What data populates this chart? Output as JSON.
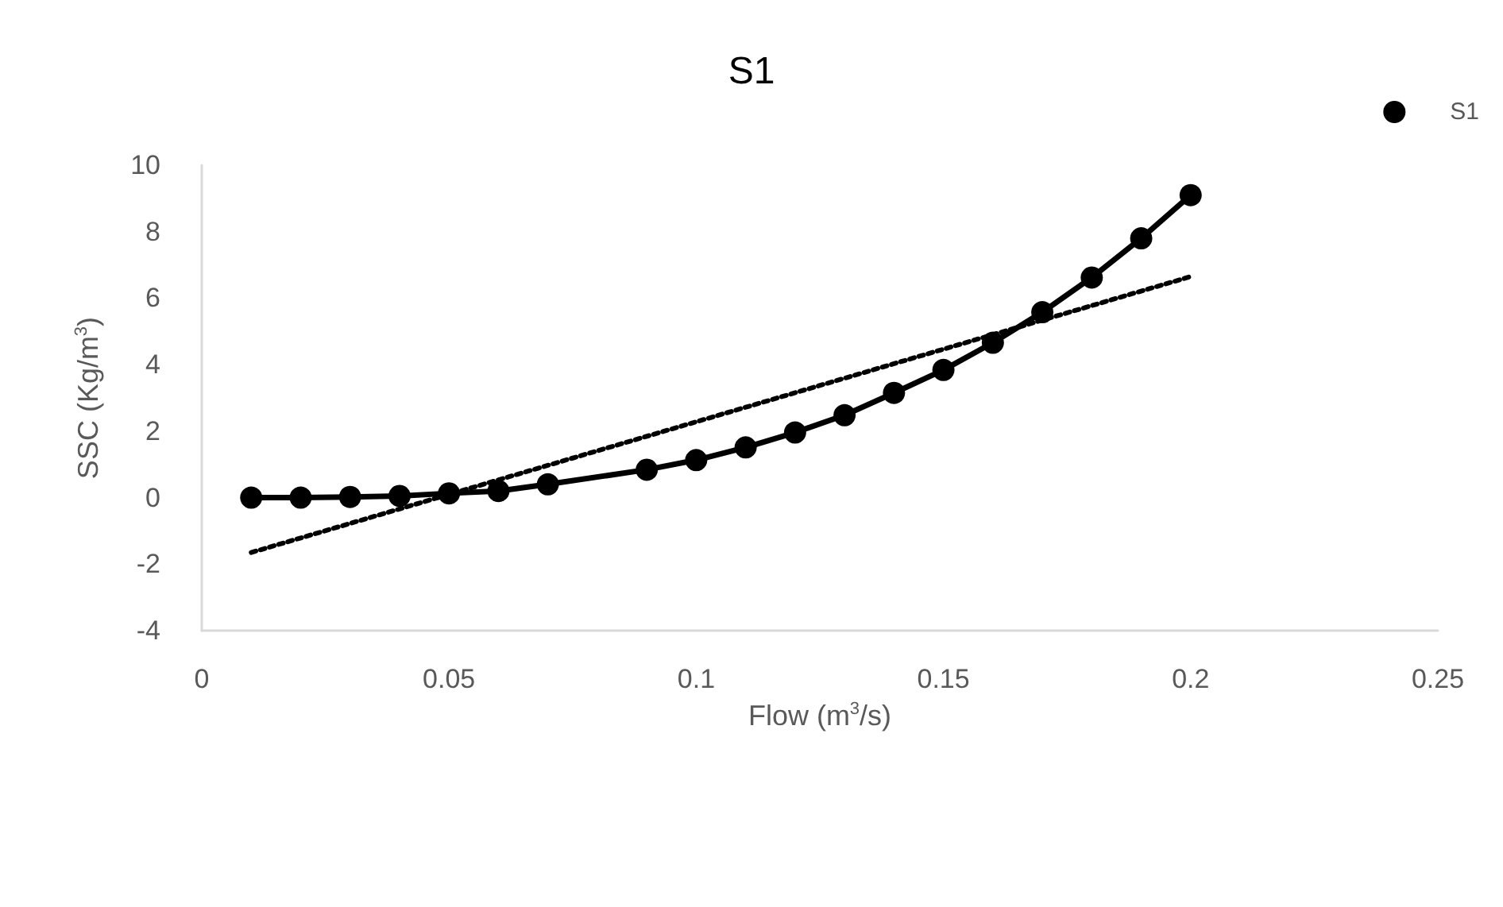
{
  "chart_data": {
    "type": "line",
    "title": "S1",
    "xlabel": "Flow (m$^{3}$/s)",
    "ylabel": "SSC (Kg/m$^{3}$)",
    "x": [
      0.01,
      0.02,
      0.03,
      0.04,
      0.05,
      0.06,
      0.07,
      0.09,
      0.1,
      0.11,
      0.12,
      0.13,
      0.14,
      0.15,
      0.16,
      0.17,
      0.18,
      0.19,
      0.2
    ],
    "series": [
      {
        "name": "S1",
        "color": "#000000",
        "marker": "circle",
        "line_style": "solid",
        "values": [
          0,
          0,
          0.02,
          0.05,
          0.13,
          0.2,
          0.4,
          0.84,
          1.13,
          1.51,
          1.96,
          2.48,
          3.15,
          3.84,
          4.66,
          5.58,
          6.62,
          7.8,
          9.1
        ]
      },
      {
        "type": "line",
        "color": "#000000",
        "marker": "none",
        "line_style": "dotted",
        "x": [
          0.01,
          0.2
        ],
        "values": [
          -1.65,
          6.65
        ]
      }
    ],
    "xlim": [
      0,
      0.25
    ],
    "xticks": [
      0,
      0.05,
      0.1,
      0.15,
      0.2,
      0.25
    ],
    "ylim": [
      -4,
      10
    ],
    "yticks": [
      -4,
      -2,
      0,
      2,
      4,
      6,
      8,
      10
    ],
    "grid": false,
    "legend": "top right"
  }
}
